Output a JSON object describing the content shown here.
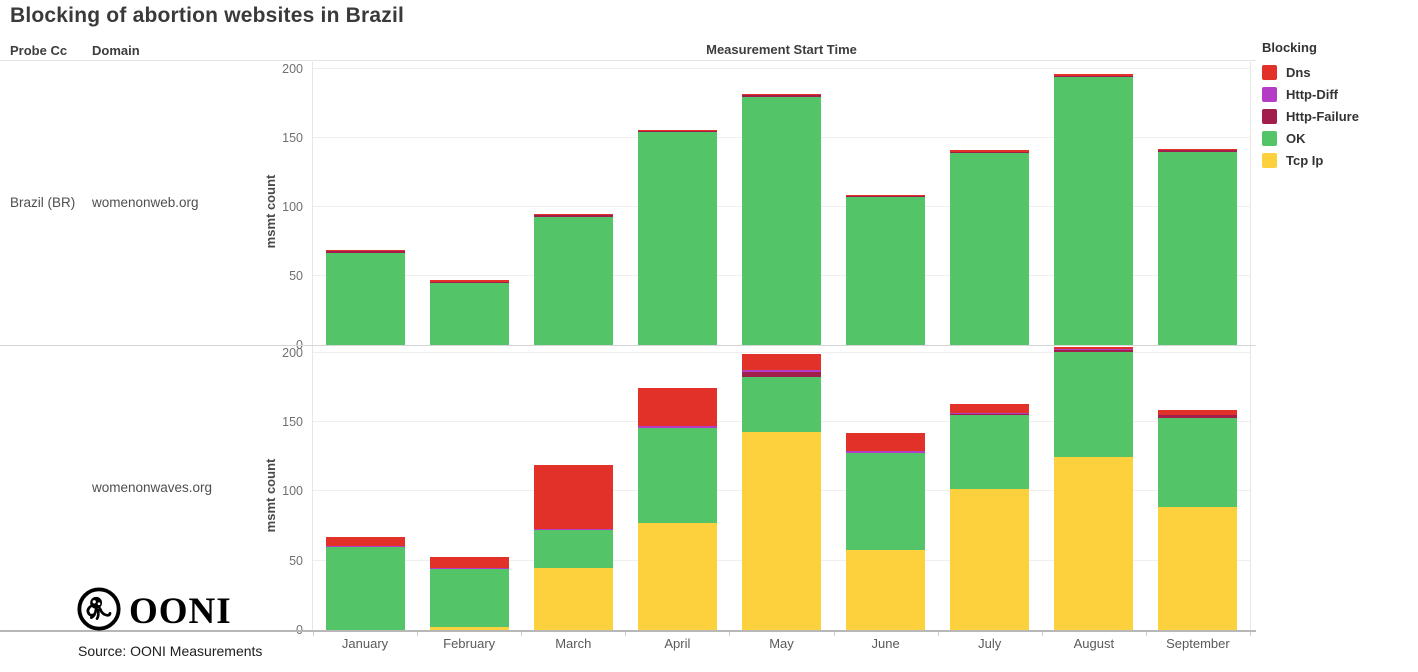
{
  "title": "Blocking of abortion websites in Brazil",
  "table_headers": {
    "probe_cc": "Probe Cc",
    "domain": "Domain",
    "x_axis": "Measurement Start Time"
  },
  "rows": [
    {
      "probe_cc": "Brazil (BR)",
      "domain": "womenonweb.org"
    },
    {
      "probe_cc": "",
      "domain": "womenonwaves.org"
    }
  ],
  "legend": {
    "title": "Blocking",
    "items": [
      {
        "label": "Dns",
        "color": "#e13128"
      },
      {
        "label": "Http-Diff",
        "color": "#b43dc6"
      },
      {
        "label": "Http-Failure",
        "color": "#a11e4d"
      },
      {
        "label": "OK",
        "color": "#53c468"
      },
      {
        "label": "Tcp Ip",
        "color": "#fdd13d"
      }
    ]
  },
  "y_axis": {
    "label": "msmt count",
    "ticks": [
      0,
      50,
      100,
      150,
      200
    ],
    "max": 205
  },
  "footer": {
    "logo_text": "OONI",
    "source": "Source: OONI Measurements"
  },
  "chart_data": [
    {
      "type": "bar",
      "stacked": true,
      "title": "Brazil (BR) — womenonweb.org",
      "xlabel": "Measurement Start Time",
      "ylabel": "msmt count",
      "ylim": [
        0,
        205
      ],
      "grid": true,
      "legend_position": "right",
      "categories": [
        "January",
        "February",
        "March",
        "April",
        "May",
        "June",
        "July",
        "August",
        "September"
      ],
      "series": [
        {
          "name": "Tcp Ip",
          "color": "#fdd13d",
          "values": [
            0,
            0,
            0,
            0,
            0,
            0,
            0,
            0,
            0
          ]
        },
        {
          "name": "OK",
          "color": "#53c468",
          "values": [
            67,
            45,
            93,
            154,
            180,
            107,
            139,
            194,
            140
          ]
        },
        {
          "name": "Http-Failure",
          "color": "#a11e4d",
          "values": [
            1,
            1,
            1,
            1,
            1,
            1,
            1,
            1,
            1
          ]
        },
        {
          "name": "Http-Diff",
          "color": "#b43dc6",
          "values": [
            0,
            0,
            0,
            0,
            0,
            0,
            0,
            0,
            0
          ]
        },
        {
          "name": "Dns",
          "color": "#e13128",
          "values": [
            1,
            1,
            1,
            1,
            1,
            1,
            1,
            1,
            1
          ]
        }
      ]
    },
    {
      "type": "bar",
      "stacked": true,
      "title": "Brazil (BR) — womenonwaves.org",
      "xlabel": "Measurement Start Time",
      "ylabel": "msmt count",
      "ylim": [
        0,
        205
      ],
      "grid": true,
      "legend_position": "right",
      "categories": [
        "January",
        "February",
        "March",
        "April",
        "May",
        "June",
        "July",
        "August",
        "September"
      ],
      "series": [
        {
          "name": "Tcp Ip",
          "color": "#fdd13d",
          "values": [
            0,
            2,
            45,
            77,
            143,
            58,
            102,
            125,
            89
          ]
        },
        {
          "name": "OK",
          "color": "#53c468",
          "values": [
            60,
            42,
            27,
            69,
            40,
            70,
            53,
            76,
            64
          ]
        },
        {
          "name": "Http-Failure",
          "color": "#a11e4d",
          "values": [
            0,
            0,
            0,
            0,
            3,
            0,
            1,
            1,
            2
          ]
        },
        {
          "name": "Http-Diff",
          "color": "#b43dc6",
          "values": [
            1,
            1,
            1,
            1,
            2,
            1,
            1,
            1,
            0
          ]
        },
        {
          "name": "Dns",
          "color": "#e13128",
          "values": [
            6,
            8,
            46,
            28,
            11,
            13,
            6,
            1,
            4
          ]
        }
      ]
    }
  ]
}
